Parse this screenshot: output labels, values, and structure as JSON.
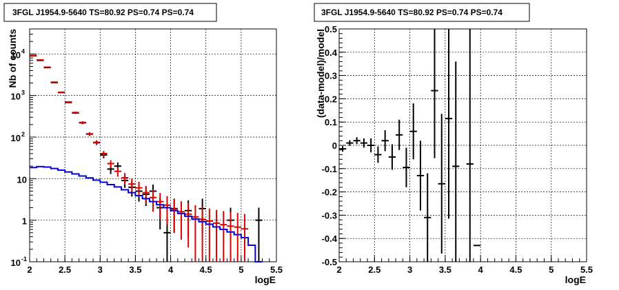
{
  "chart_data": [
    {
      "type": "histogram",
      "title": "3FGL J1954.9-5640 TS=80.92 PS=0.74 PS=0.74",
      "xlabel": "logE",
      "ylabel": "Nb of counts",
      "xlim": [
        2,
        5.5
      ],
      "ylim": [
        0.1,
        40000
      ],
      "yscale": "log",
      "grid": true,
      "x_ticks": [
        "2",
        "2.5",
        "3",
        "3.5",
        "4",
        "4.5",
        "5",
        "5.5"
      ],
      "y_ticks": [
        {
          "v": 0.1,
          "label": "10",
          "exp": "-1"
        },
        {
          "v": 1,
          "label": "1",
          "exp": ""
        },
        {
          "v": 10,
          "label": "10",
          "exp": ""
        },
        {
          "v": 100,
          "label": "10",
          "exp": "2"
        },
        {
          "v": 1000,
          "label": "10",
          "exp": "3"
        },
        {
          "v": 10000,
          "label": "10",
          "exp": "4"
        }
      ],
      "bin_width": 0.1,
      "series": [
        {
          "role": "data",
          "color": "#000000",
          "x": [
            2.05,
            2.15,
            2.25,
            2.35,
            2.45,
            2.55,
            2.65,
            2.75,
            2.85,
            2.95,
            3.05,
            3.15,
            3.25,
            3.35,
            3.45,
            3.55,
            3.65,
            3.75,
            3.85,
            3.95,
            4.05,
            4.15,
            4.25,
            4.35,
            4.45,
            4.55,
            4.65,
            4.75,
            4.85,
            4.95,
            5.05,
            5.15,
            5.25,
            5.35
          ],
          "y": [
            9000,
            7000,
            4700,
            2050,
            1180,
            680,
            380,
            220,
            118,
            73,
            37,
            17,
            20,
            9,
            6.2,
            5,
            4.2,
            5,
            2,
            0.5,
            1.9,
            null,
            1.7,
            null,
            1.9,
            null,
            null,
            null,
            1,
            null,
            null,
            null,
            1,
            null
          ],
          "yerr": [
            95,
            84,
            68,
            45,
            34,
            26,
            19,
            15,
            11,
            8.5,
            6,
            4.1,
            4.5,
            3,
            2.5,
            2.2,
            2,
            2.2,
            1.4,
            0.7,
            1.4,
            null,
            1.3,
            null,
            1.4,
            null,
            null,
            null,
            1,
            null,
            null,
            null,
            1,
            null
          ]
        },
        {
          "role": "model",
          "color": "#dd0000",
          "x": [
            2.05,
            2.15,
            2.25,
            2.35,
            2.45,
            2.55,
            2.65,
            2.75,
            2.85,
            2.95,
            3.05,
            3.15,
            3.25,
            3.35,
            3.45,
            3.55,
            3.65,
            3.75,
            3.85,
            3.95,
            4.05,
            4.15,
            4.25,
            4.35,
            4.45,
            4.55,
            4.65,
            4.75,
            4.85,
            4.95,
            5.05
          ],
          "y": [
            9200,
            7200,
            4800,
            2100,
            1200,
            700,
            390,
            225,
            120,
            75,
            40,
            23,
            15,
            10.5,
            7.4,
            6,
            4.6,
            3.5,
            2.8,
            2.3,
            1.85,
            1.6,
            1.4,
            1.2,
            1.05,
            0.95,
            0.85,
            0.78,
            0.72,
            0.68,
            0.62
          ],
          "yerr": [
            96,
            85,
            69,
            46,
            35,
            26,
            20,
            15,
            11,
            8.7,
            6.3,
            4.8,
            3.9,
            3.2,
            2.7,
            2.4,
            2.1,
            1.9,
            1.7,
            1.5,
            1.36,
            1.26,
            1.18,
            1.1,
            1.02,
            0.97,
            0.92,
            0.88,
            0.85,
            0.82,
            0.79
          ]
        },
        {
          "role": "blue-model",
          "color": "#0000dd",
          "style": "step",
          "x": [
            2.05,
            2.15,
            2.25,
            2.35,
            2.45,
            2.55,
            2.65,
            2.75,
            2.85,
            2.95,
            3.05,
            3.15,
            3.25,
            3.35,
            3.45,
            3.55,
            3.65,
            3.75,
            3.85,
            3.95,
            4.05,
            4.15,
            4.25,
            4.35,
            4.45,
            4.55,
            4.65,
            4.75,
            4.85,
            4.95,
            5.05,
            5.15,
            5.25
          ],
          "y": [
            18.5,
            19.5,
            19,
            17.5,
            16,
            14.5,
            13,
            11.6,
            10.4,
            9.2,
            8.2,
            7.2,
            6.3,
            5.4,
            4.6,
            3.9,
            3.3,
            2.8,
            2.35,
            2.0,
            1.7,
            1.45,
            1.25,
            1.07,
            0.92,
            0.8,
            0.69,
            0.6,
            0.52,
            0.45,
            0.38,
            0.25,
            0.1
          ]
        }
      ]
    },
    {
      "type": "errorbar",
      "title": "3FGL J1954.9-5640 TS=80.92 PS=0.74 PS=0.74",
      "xlabel": "logE",
      "ylabel": "(data-model)/model",
      "xlim": [
        2,
        5.5
      ],
      "ylim": [
        -0.5,
        0.5
      ],
      "grid": true,
      "x_ticks": [
        "2",
        "2.5",
        "3",
        "3.5",
        "4",
        "4.5",
        "5",
        "5.5"
      ],
      "y_ticks": [
        "-0.5",
        "-0.4",
        "-0.3",
        "-0.2",
        "-0.1",
        "0",
        "0.1",
        "0.2",
        "0.3",
        "0.4",
        "0.5"
      ],
      "bin_width": 0.1,
      "series": [
        {
          "role": "residual",
          "color": "#000000",
          "x": [
            2.05,
            2.15,
            2.25,
            2.35,
            2.45,
            2.55,
            2.65,
            2.75,
            2.85,
            2.95,
            3.05,
            3.15,
            3.25,
            3.35,
            3.45,
            3.55,
            3.65,
            3.85,
            3.95
          ],
          "y": [
            -0.015,
            0.01,
            0.02,
            0.01,
            0.0,
            -0.04,
            0.02,
            -0.05,
            0.045,
            -0.095,
            0.06,
            -0.13,
            -0.31,
            0.235,
            -0.165,
            0.115,
            -0.09,
            -0.08,
            -0.43
          ],
          "yerr": [
            0.012,
            0.012,
            0.015,
            0.02,
            0.03,
            0.035,
            0.045,
            0.055,
            0.065,
            0.085,
            0.12,
            0.15,
            0.19,
            0.29,
            0.3,
            0.43,
            0.45,
            0.58,
            0.0
          ]
        }
      ]
    }
  ]
}
